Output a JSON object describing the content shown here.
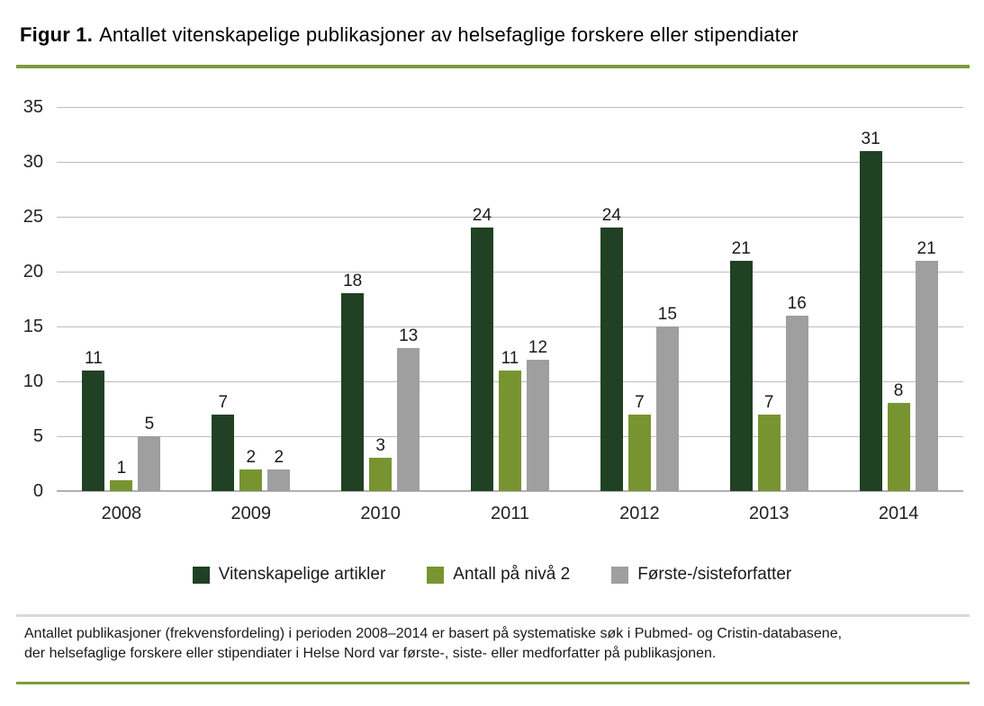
{
  "header": {
    "prefix": "Figur 1.",
    "title": "Antallet vitenskapelige publikasjoner av helsefaglige forskere eller stipendiater"
  },
  "chart_data": {
    "type": "bar",
    "title": "Figur 1. Antallet vitenskapelige publikasjoner av helsefaglige forskere eller stipendiater",
    "categories": [
      "2008",
      "2009",
      "2010",
      "2011",
      "2012",
      "2013",
      "2014"
    ],
    "series": [
      {
        "name": "Vitenskapelige artikler",
        "color": "#204124",
        "values": [
          11,
          7,
          18,
          24,
          24,
          21,
          31
        ]
      },
      {
        "name": "Antall på nivå 2",
        "color": "#789430",
        "values": [
          1,
          2,
          3,
          11,
          7,
          7,
          8
        ]
      },
      {
        "name": "Første-/sisteforfatter",
        "color": "#9f9f9f",
        "values": [
          5,
          2,
          13,
          12,
          15,
          16,
          21
        ]
      }
    ],
    "xlabel": "",
    "ylabel": "",
    "ylim": [
      0,
      35
    ],
    "ytick_step": 5,
    "yticks": [
      0,
      5,
      10,
      15,
      20,
      25,
      30,
      35
    ],
    "grid": true,
    "value_labels": true,
    "legend_position": "bottom"
  },
  "colors": {
    "accent_rule": "#7d9b3d",
    "separator": "#d9d9d9",
    "gridline": "#bcbcbc",
    "axis_line": "#b0b0b0"
  },
  "footnote": {
    "line1": "Antallet publikasjoner (frekvensfordeling) i perioden 2008–2014 er basert på systematiske søk i Pubmed- og Cristin-databasene,",
    "line2": "der helsefaglige forskere eller stipendiater i Helse Nord var første-, siste- eller medforfatter på publikasjonen."
  }
}
